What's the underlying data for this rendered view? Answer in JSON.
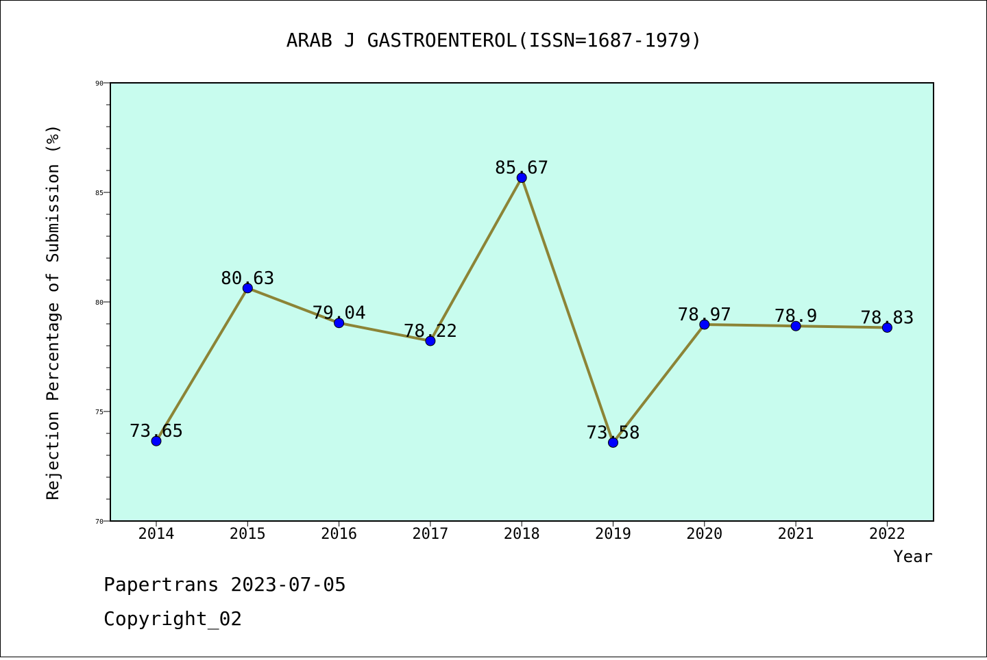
{
  "chart_data": {
    "type": "line",
    "title": "ARAB J GASTROENTEROL(ISSN=1687-1979)",
    "xlabel": "Year",
    "ylabel": "Rejection Percentage of Submission (%)",
    "categories": [
      "2014",
      "2015",
      "2016",
      "2017",
      "2018",
      "2019",
      "2020",
      "2021",
      "2022"
    ],
    "values": [
      73.65,
      80.63,
      79.04,
      78.22,
      85.67,
      73.58,
      78.97,
      78.9,
      78.83
    ],
    "data_labels": [
      "73.65",
      "80.63",
      "79.04",
      "78.22",
      "85.67",
      "73.58",
      "78.97",
      "78.9",
      "78.83"
    ],
    "ylim": [
      70,
      90
    ],
    "yticks": [
      "70",
      "75",
      "80",
      "85",
      "90"
    ],
    "grid": false,
    "colors": {
      "plot_background": "#c8fcee",
      "line": "#8c8436",
      "marker": "#0000ff"
    }
  },
  "footer": {
    "source": "Papertrans 2023-07-05",
    "copyright": "Copyright_02"
  }
}
